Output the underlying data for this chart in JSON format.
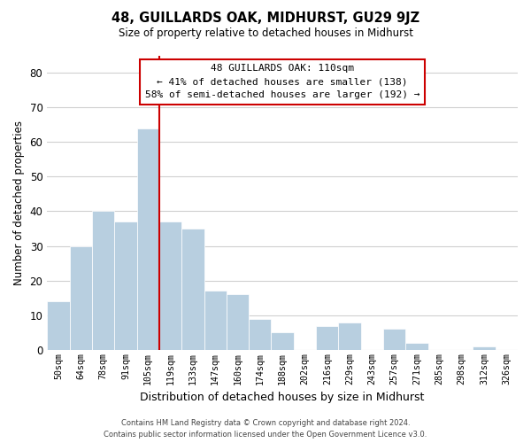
{
  "title": "48, GUILLARDS OAK, MIDHURST, GU29 9JZ",
  "subtitle": "Size of property relative to detached houses in Midhurst",
  "xlabel": "Distribution of detached houses by size in Midhurst",
  "ylabel": "Number of detached properties",
  "bar_color": "#b8cfe0",
  "highlight_bar_edge_color": "#cc0000",
  "highlight_bar_index": 4,
  "categories": [
    "50sqm",
    "64sqm",
    "78sqm",
    "91sqm",
    "105sqm",
    "119sqm",
    "133sqm",
    "147sqm",
    "160sqm",
    "174sqm",
    "188sqm",
    "202sqm",
    "216sqm",
    "229sqm",
    "243sqm",
    "257sqm",
    "271sqm",
    "285sqm",
    "298sqm",
    "312sqm",
    "326sqm"
  ],
  "values": [
    14,
    30,
    40,
    37,
    64,
    37,
    35,
    17,
    16,
    9,
    5,
    0,
    7,
    8,
    0,
    6,
    2,
    0,
    0,
    1,
    0
  ],
  "ylim": [
    0,
    85
  ],
  "yticks": [
    0,
    10,
    20,
    30,
    40,
    50,
    60,
    70,
    80
  ],
  "annotation_title": "48 GUILLARDS OAK: 110sqm",
  "annotation_line1": "← 41% of detached houses are smaller (138)",
  "annotation_line2": "58% of semi-detached houses are larger (192) →",
  "annotation_box_color": "#ffffff",
  "annotation_box_edge_color": "#cc0000",
  "footer_line1": "Contains HM Land Registry data © Crown copyright and database right 2024.",
  "footer_line2": "Contains public sector information licensed under the Open Government Licence v3.0.",
  "background_color": "#ffffff",
  "grid_color": "#d0d0d0"
}
